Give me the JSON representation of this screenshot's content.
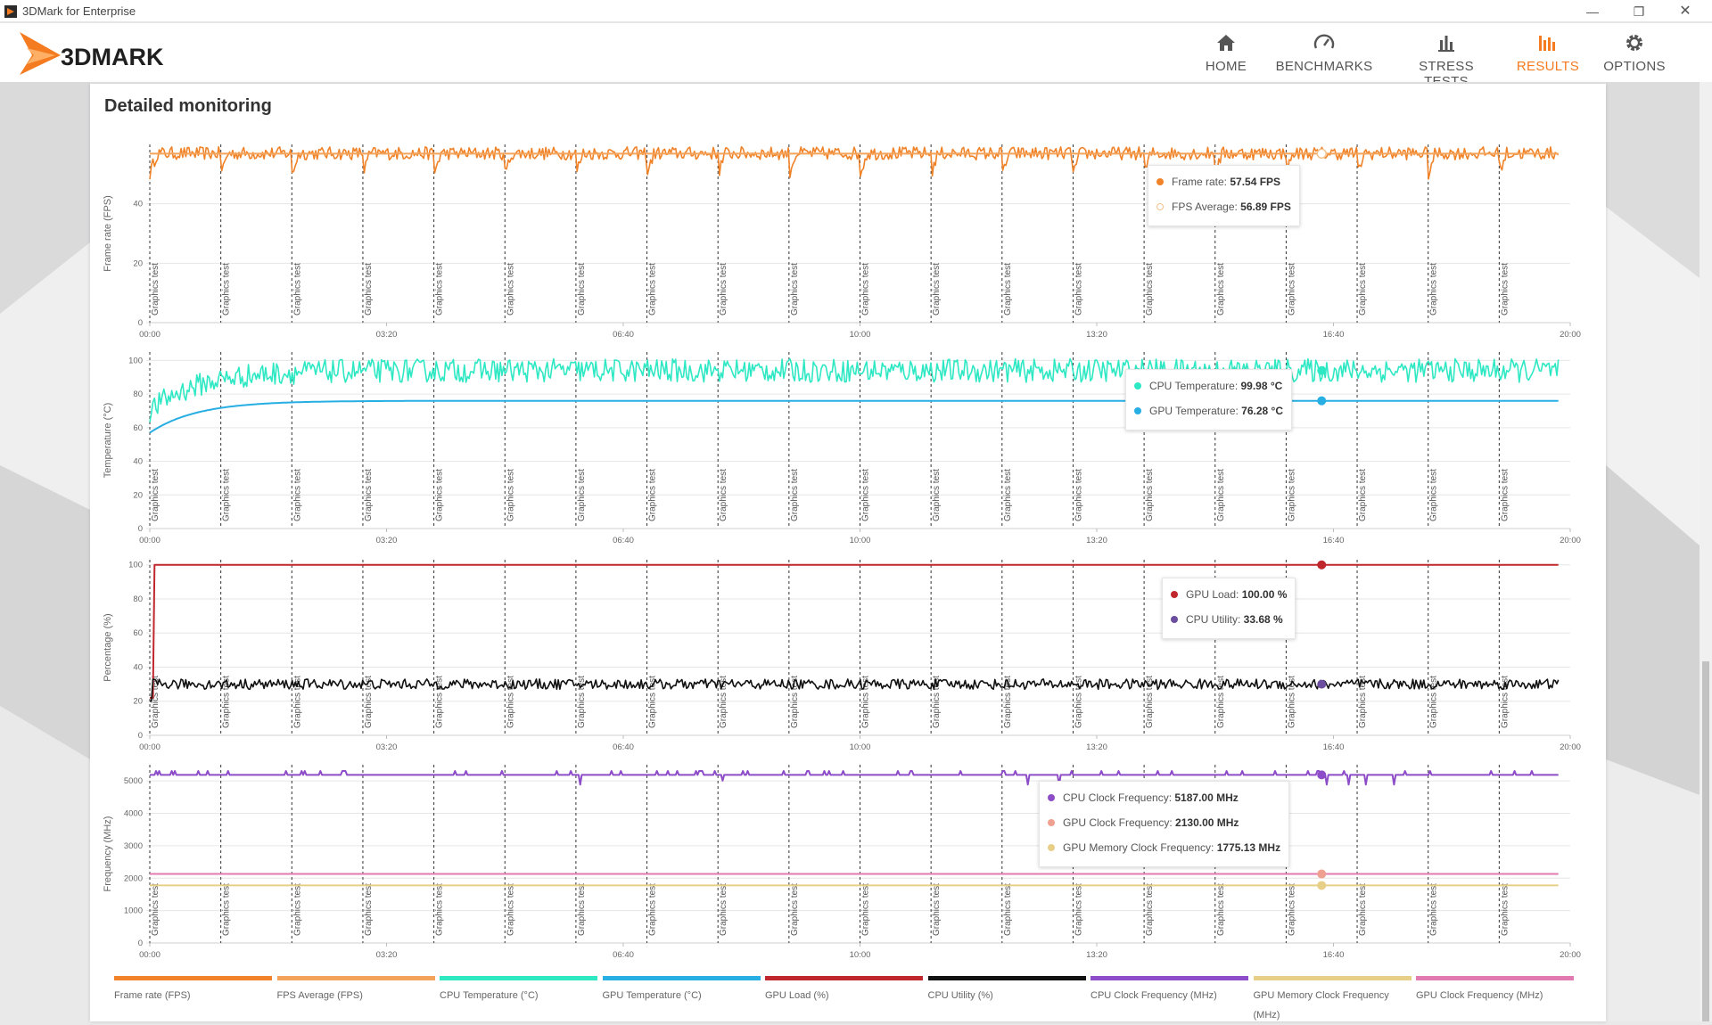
{
  "window": {
    "title": "3DMark for Enterprise",
    "minimize_icon": "minimize-icon",
    "restore_icon": "restore-icon",
    "close_icon": "close-icon"
  },
  "header": {
    "logo_text": "3DMARK",
    "nav": [
      {
        "label": "HOME",
        "icon": "home-icon"
      },
      {
        "label": "BENCHMARKS",
        "icon": "gauge-icon"
      },
      {
        "label": "STRESS TESTS",
        "icon": "bar-chart-icon"
      },
      {
        "label": "RESULTS",
        "icon": "results-chart-icon",
        "active": true
      },
      {
        "label": "OPTIONS",
        "icon": "gear-icon"
      }
    ],
    "accent_color": "#f47b20"
  },
  "panel": {
    "title": "Detailed monitoring"
  },
  "time_axis": {
    "ticks": [
      "00:00",
      "03:20",
      "06:40",
      "10:00",
      "13:20",
      "16:40",
      "20:00"
    ],
    "range_seconds": [
      0,
      1200
    ]
  },
  "marker_label": "Graphics test",
  "markers_seconds": [
    0,
    60,
    120,
    180,
    240,
    300,
    360,
    420,
    480,
    540,
    600,
    660,
    720,
    780,
    840,
    900,
    960,
    1020,
    1080,
    1140
  ],
  "chart_data": [
    {
      "type": "line",
      "ylabel": "Frame rate (FPS)",
      "ylim": [
        0,
        60
      ],
      "yticks": [
        0,
        20,
        40
      ],
      "series": [
        {
          "name": "Frame rate (FPS)",
          "color": "#f08228",
          "approx_level": 57,
          "noise": 2.2,
          "dips": 7
        },
        {
          "name": "FPS Average (FPS)",
          "color": "#f3a35a",
          "approx_level": 56.89
        }
      ],
      "tooltip": [
        {
          "label": "Frame rate:",
          "value": "57.54 FPS",
          "color": "#f08228",
          "hollow": false
        },
        {
          "label": "FPS Average:",
          "value": "56.89 FPS",
          "color": "#f3c38a",
          "hollow": true
        }
      ]
    },
    {
      "type": "line",
      "ylabel": "Temperature (°C)",
      "ylim": [
        0,
        105
      ],
      "yticks": [
        0,
        20,
        40,
        60,
        80,
        100
      ],
      "series": [
        {
          "name": "CPU Temperature (°C)",
          "color": "#2ee8c4",
          "approx_level": 94,
          "noise": 7,
          "start": 70
        },
        {
          "name": "GPU Temperature (°C)",
          "color": "#27aee2",
          "approx_level": 76,
          "start": 57
        }
      ],
      "tooltip": [
        {
          "label": "CPU Temperature:",
          "value": "99.98 °C",
          "color": "#2ee8c4",
          "hollow": false
        },
        {
          "label": "GPU Temperature:",
          "value": "76.28 °C",
          "color": "#27aee2",
          "hollow": false
        }
      ]
    },
    {
      "type": "line",
      "ylabel": "Percentage (%)",
      "ylim": [
        0,
        103
      ],
      "yticks": [
        0,
        20,
        40,
        60,
        80,
        100
      ],
      "series": [
        {
          "name": "GPU Load (%)",
          "color": "#c0272d",
          "approx_level": 100
        },
        {
          "name": "CPU Utility (%)",
          "color": "#111111",
          "approx_level": 30,
          "noise": 3
        }
      ],
      "tooltip": [
        {
          "label": "GPU Load:",
          "value": "100.00 %",
          "color": "#c0272d",
          "hollow": false
        },
        {
          "label": "CPU Utility:",
          "value": "33.68 %",
          "color": "#6b4ea0",
          "hollow": false
        }
      ]
    },
    {
      "type": "line",
      "ylabel": "Frequency (MHz)",
      "ylim": [
        0,
        5500
      ],
      "yticks": [
        0,
        1000,
        2000,
        3000,
        4000,
        5000
      ],
      "series": [
        {
          "name": "CPU Clock Frequency (MHz)",
          "color": "#8d4cc8",
          "approx_level": 5187
        },
        {
          "name": "GPU Clock Frequency (MHz)",
          "color": "#e07ab0",
          "approx_level": 2130
        },
        {
          "name": "GPU Memory Clock Frequency (MHz)",
          "color": "#e8cf87",
          "approx_level": 1775.13
        }
      ],
      "tooltip": [
        {
          "label": "CPU Clock Frequency:",
          "value": "5187.00 MHz",
          "color": "#8d4cc8",
          "hollow": false
        },
        {
          "label": "GPU Clock Frequency:",
          "value": "2130.00 MHz",
          "color": "#f0a090",
          "hollow": false
        },
        {
          "label": "GPU Memory Clock Frequency:",
          "value": "1775.13 MHz",
          "color": "#e8cf87",
          "hollow": false
        }
      ]
    }
  ],
  "legend": [
    {
      "label": "Frame rate (FPS)",
      "color": "#f08228"
    },
    {
      "label": "FPS Average (FPS)",
      "color": "#f3a35a"
    },
    {
      "label": "CPU Temperature (°C)",
      "color": "#2ee8c4"
    },
    {
      "label": "GPU Temperature (°C)",
      "color": "#27aee2"
    },
    {
      "label": "GPU Load (%)",
      "color": "#c0272d"
    },
    {
      "label": "CPU Utility (%)",
      "color": "#111111"
    },
    {
      "label": "CPU Clock Frequency (MHz)",
      "color": "#8d4cc8"
    },
    {
      "label": "GPU Memory Clock Frequency (MHz)",
      "color": "#e8cf87"
    },
    {
      "label": "GPU Clock Frequency (MHz)",
      "color": "#e07ab0"
    }
  ]
}
